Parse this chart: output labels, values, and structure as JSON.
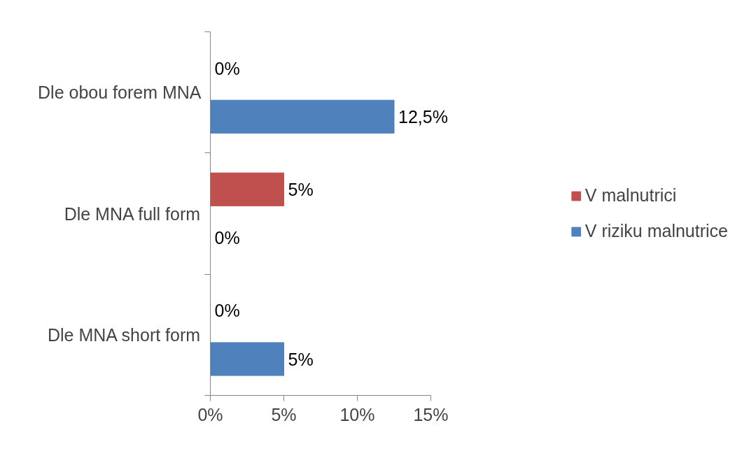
{
  "chart_data": {
    "type": "bar",
    "orientation": "horizontal",
    "categories": [
      "Dle obou forem MNA",
      "Dle MNA full form",
      "Dle MNA short form"
    ],
    "series": [
      {
        "name": "V malnutrici",
        "color": "#c0504d",
        "values": [
          0,
          5,
          0
        ],
        "value_labels": [
          "0%",
          "5%",
          "0%"
        ]
      },
      {
        "name": "V riziku malnutrice",
        "color": "#4f81bd",
        "values": [
          12.5,
          0,
          5
        ],
        "value_labels": [
          "12,5%",
          "0%",
          "5%"
        ]
      }
    ],
    "xlim": [
      0,
      15
    ],
    "xticks": [
      {
        "value": 0,
        "label": "0%"
      },
      {
        "value": 5,
        "label": "5%"
      },
      {
        "value": 10,
        "label": "10%"
      },
      {
        "value": 15,
        "label": "15%"
      }
    ],
    "grid": false,
    "legend": "right"
  }
}
